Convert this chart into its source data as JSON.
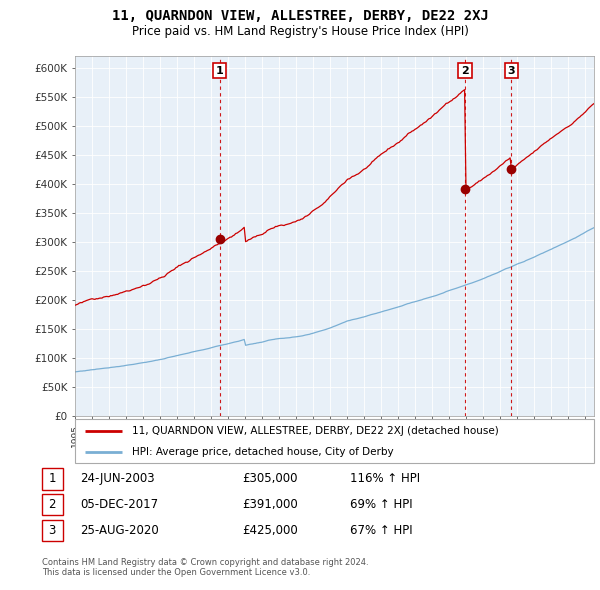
{
  "title": "11, QUARNDON VIEW, ALLESTREE, DERBY, DE22 2XJ",
  "subtitle": "Price paid vs. HM Land Registry's House Price Index (HPI)",
  "ylabel_ticks": [
    "£0",
    "£50K",
    "£100K",
    "£150K",
    "£200K",
    "£250K",
    "£300K",
    "£350K",
    "£400K",
    "£450K",
    "£500K",
    "£550K",
    "£600K"
  ],
  "ytick_values": [
    0,
    50000,
    100000,
    150000,
    200000,
    250000,
    300000,
    350000,
    400000,
    450000,
    500000,
    550000,
    600000
  ],
  "ylim": [
    0,
    620000
  ],
  "x_start_year": 1995,
  "x_end_year": 2025,
  "sale_times": [
    2003.5,
    2017.92,
    2020.65
  ],
  "sale_prices": [
    305000,
    391000,
    425000
  ],
  "sale_labels": [
    "1",
    "2",
    "3"
  ],
  "sale_date_labels": [
    "24-JUN-2003",
    "05-DEC-2017",
    "25-AUG-2020"
  ],
  "sale_price_labels": [
    "£305,000",
    "£391,000",
    "£425,000"
  ],
  "sale_hpi_labels": [
    "116% ↑ HPI",
    "69% ↑ HPI",
    "67% ↑ HPI"
  ],
  "property_line_color": "#cc0000",
  "hpi_line_color": "#7aafd4",
  "dashed_vline_color": "#cc0000",
  "legend_property_label": "11, QUARNDON VIEW, ALLESTREE, DERBY, DE22 2XJ (detached house)",
  "legend_hpi_label": "HPI: Average price, detached house, City of Derby",
  "footer_line1": "Contains HM Land Registry data © Crown copyright and database right 2024.",
  "footer_line2": "This data is licensed under the Open Government Licence v3.0.",
  "background_color": "#ffffff",
  "chart_bg_color": "#e8f0f8",
  "grid_color": "#ffffff"
}
